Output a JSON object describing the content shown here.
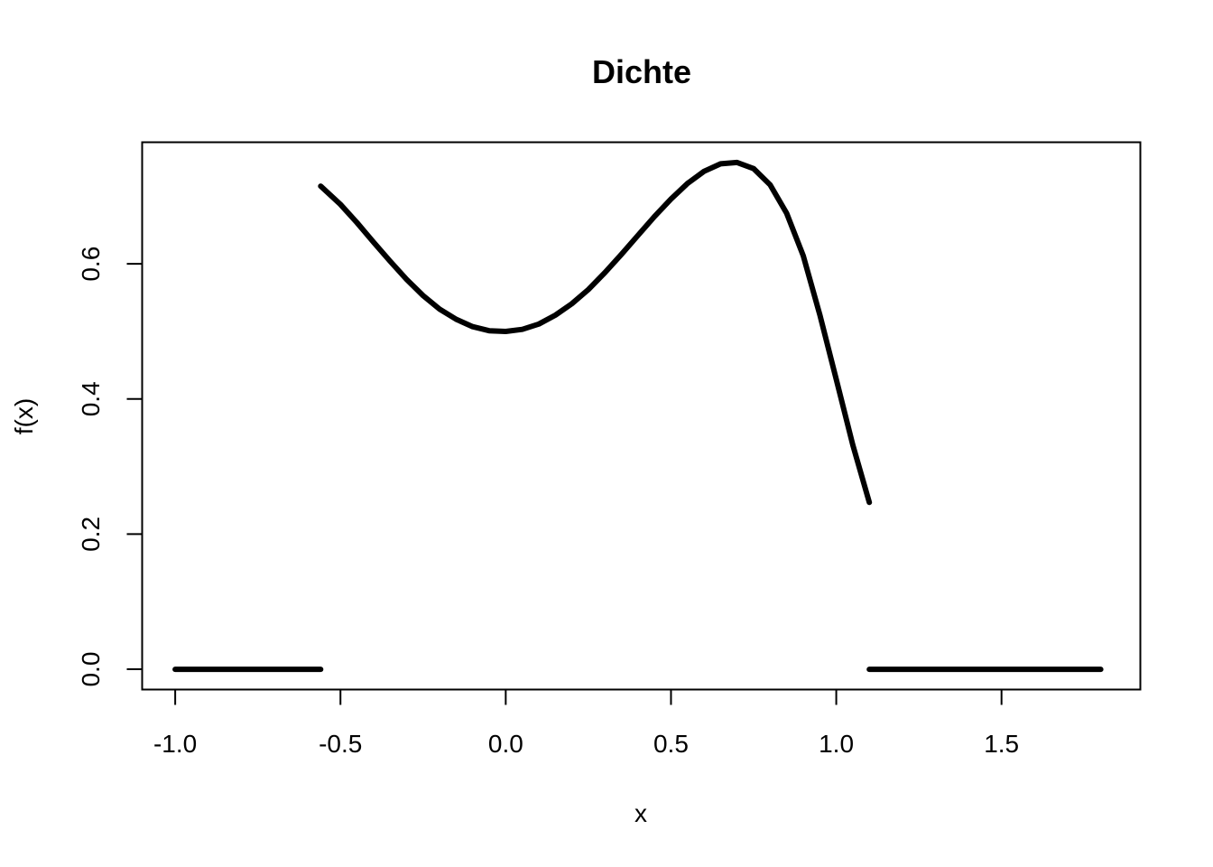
{
  "chart_data": {
    "type": "line",
    "title": "Dichte",
    "xlabel": "x",
    "ylabel": "f(x)",
    "xlim": [
      -1.1,
      1.92
    ],
    "ylim": [
      -0.03,
      0.78
    ],
    "x_ticks": [
      -1.0,
      -0.5,
      0.0,
      0.5,
      1.0,
      1.5
    ],
    "x_tick_labels": [
      "-1.0",
      "-0.5",
      "0.0",
      "0.5",
      "1.0",
      "1.5"
    ],
    "y_ticks": [
      0.0,
      0.2,
      0.4,
      0.6
    ],
    "y_tick_labels": [
      "0.0",
      "0.2",
      "0.4",
      "0.6"
    ],
    "grid": false,
    "line_color": "#000000",
    "series": [
      {
        "x": [
          -1.0,
          -0.56
        ],
        "y": [
          0.0,
          0.0
        ]
      },
      {
        "x": [
          -0.56,
          -0.5,
          -0.45,
          -0.4,
          -0.35,
          -0.3,
          -0.25,
          -0.2,
          -0.15,
          -0.1,
          -0.05,
          0.0,
          0.05,
          0.1,
          0.15,
          0.2,
          0.25,
          0.3,
          0.35,
          0.4,
          0.45,
          0.5,
          0.55,
          0.6,
          0.65,
          0.7,
          0.75,
          0.8,
          0.85,
          0.9,
          0.95,
          1.0,
          1.05,
          1.1
        ],
        "y": [
          0.715,
          0.688,
          0.661,
          0.632,
          0.604,
          0.577,
          0.553,
          0.533,
          0.518,
          0.507,
          0.501,
          0.5,
          0.503,
          0.511,
          0.524,
          0.541,
          0.562,
          0.587,
          0.614,
          0.642,
          0.67,
          0.696,
          0.719,
          0.737,
          0.748,
          0.75,
          0.741,
          0.717,
          0.675,
          0.612,
          0.525,
          0.429,
          0.332,
          0.247
        ]
      },
      {
        "x": [
          1.1,
          1.8
        ],
        "y": [
          0.0,
          0.0
        ]
      }
    ]
  }
}
